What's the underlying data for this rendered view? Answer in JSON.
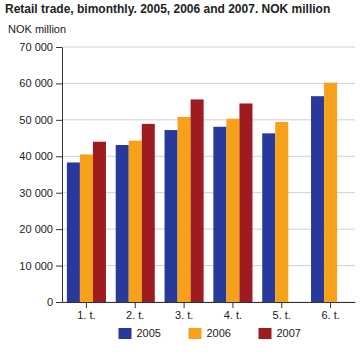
{
  "chart_data": {
    "type": "bar",
    "title": "Retail trade, bimonthly. 2005, 2006 and 2007. NOK million",
    "y_label": "NOK million",
    "categories": [
      "1. t.",
      "2. t.",
      "3. t.",
      "4. t.",
      "5. t.",
      "6. t."
    ],
    "series": [
      {
        "name": "2005",
        "color": "#27399a",
        "values": [
          38300,
          43100,
          47200,
          48100,
          46300,
          56500
        ]
      },
      {
        "name": "2006",
        "color": "#f7a11a",
        "values": [
          40500,
          44300,
          50800,
          50300,
          49400,
          60200
        ]
      },
      {
        "name": "2007",
        "color": "#9e1b20",
        "values": [
          44000,
          48900,
          55600,
          54500,
          null,
          null
        ]
      }
    ],
    "ylim": [
      0,
      70000
    ],
    "yticks": [
      0,
      {
        "value": 10000,
        "label": "10 000"
      },
      {
        "value": 20000,
        "label": "20 000"
      },
      {
        "value": 30000,
        "label": "30 000"
      },
      {
        "value": 40000,
        "label": "40 000"
      },
      {
        "value": 50000,
        "label": "50 000"
      },
      {
        "value": 60000,
        "label": "60 000"
      },
      {
        "value": 70000,
        "label": "70 000"
      }
    ],
    "grid": true,
    "legend": "bottom"
  }
}
